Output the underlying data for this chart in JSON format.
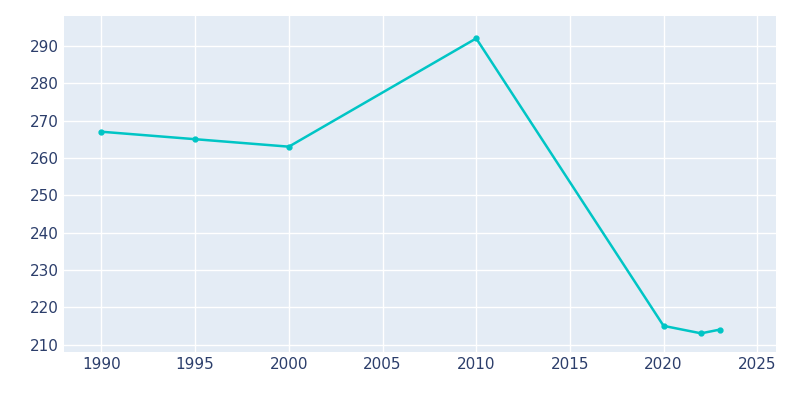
{
  "x": [
    1990,
    1995,
    2000,
    2010,
    2020,
    2022,
    2023
  ],
  "y": [
    267,
    265,
    263,
    292,
    215,
    213,
    214
  ],
  "line_color": "#00C5C5",
  "line_width": 1.8,
  "marker": "o",
  "marker_size": 3.5,
  "xlim": [
    1988,
    2026
  ],
  "ylim": [
    208,
    298
  ],
  "xticks": [
    1990,
    1995,
    2000,
    2005,
    2010,
    2015,
    2020,
    2025
  ],
  "yticks": [
    210,
    220,
    230,
    240,
    250,
    260,
    270,
    280,
    290
  ],
  "fig_bg_color": "#FFFFFF",
  "axes_bg_color": "#E4ECF5",
  "grid_color": "#FFFFFF",
  "tick_color": "#2C3E6B",
  "tick_fontsize": 11
}
